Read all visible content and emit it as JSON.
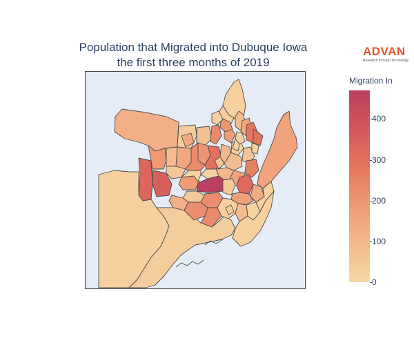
{
  "title": {
    "line1": "Population that Migrated into Dubuque Iowa",
    "line2": "the first three months of 2019"
  },
  "logo": {
    "brand": "ADVAN",
    "tagline": "Research through Technology",
    "color": "#e8532a"
  },
  "colorbar": {
    "title": "Migration In",
    "min": 0,
    "max": 470,
    "ticks": [
      "0",
      "100",
      "200",
      "300",
      "400"
    ],
    "tick_values": [
      0,
      100,
      200,
      300,
      400
    ],
    "colors": [
      "#f7d6a4",
      "#f2b98e",
      "#ef9a74",
      "#e5765e",
      "#d3575b",
      "#b9405e"
    ]
  },
  "map": {
    "background": "#e5ecf6",
    "border_color": "#555555",
    "region_values": [
      20,
      30,
      90,
      150,
      160,
      120,
      30,
      70,
      230,
      180,
      200,
      150,
      230,
      300,
      280,
      20,
      300,
      330,
      190,
      350,
      80,
      50,
      100,
      80,
      60,
      250,
      180,
      470,
      100,
      160,
      40,
      320,
      170,
      140,
      40,
      120,
      220,
      20,
      30,
      220,
      230,
      20,
      80,
      10,
      20,
      200,
      20,
      140,
      20,
      20,
      60,
      20,
      10,
      20,
      20,
      30
    ]
  }
}
